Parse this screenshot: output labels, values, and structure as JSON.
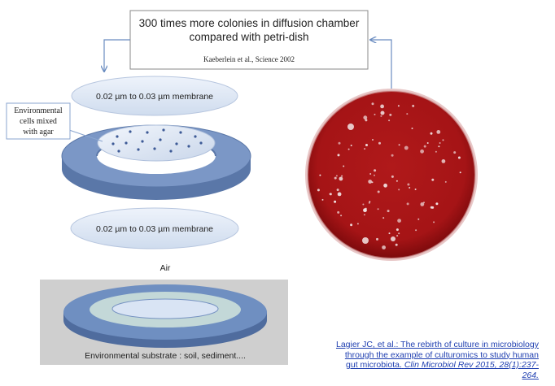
{
  "header": {
    "title_line1": "300 times more colonies in diffusion chamber",
    "title_line2": "compared with petri-dish",
    "reference": "Kaeberlein et al., Science 2002"
  },
  "chamber": {
    "top_membrane": "0.02 µm to 0.03 µm membrane",
    "bottom_membrane": "0.02 µm to 0.03 µm membrane",
    "callout_line1": "Environmental",
    "callout_line2": "cells mixed",
    "callout_line3": "with agar"
  },
  "substrate": {
    "air_label": "Air",
    "substrate_label": "Environmental substrate : soil, sediment...."
  },
  "citation": {
    "text": "Lagier JC, et al.: The rebirth of culture in microbiology through the example of culturomics to study human gut microbiota.",
    "journal": "Clin Microbiol Rev 2015, 28(1):237-264."
  },
  "colors": {
    "ring_blue": "#6f8fc1",
    "membrane_blue": "#dde8f6",
    "petri_red": "#b01a1a",
    "citation_link": "#1f3fb0"
  }
}
